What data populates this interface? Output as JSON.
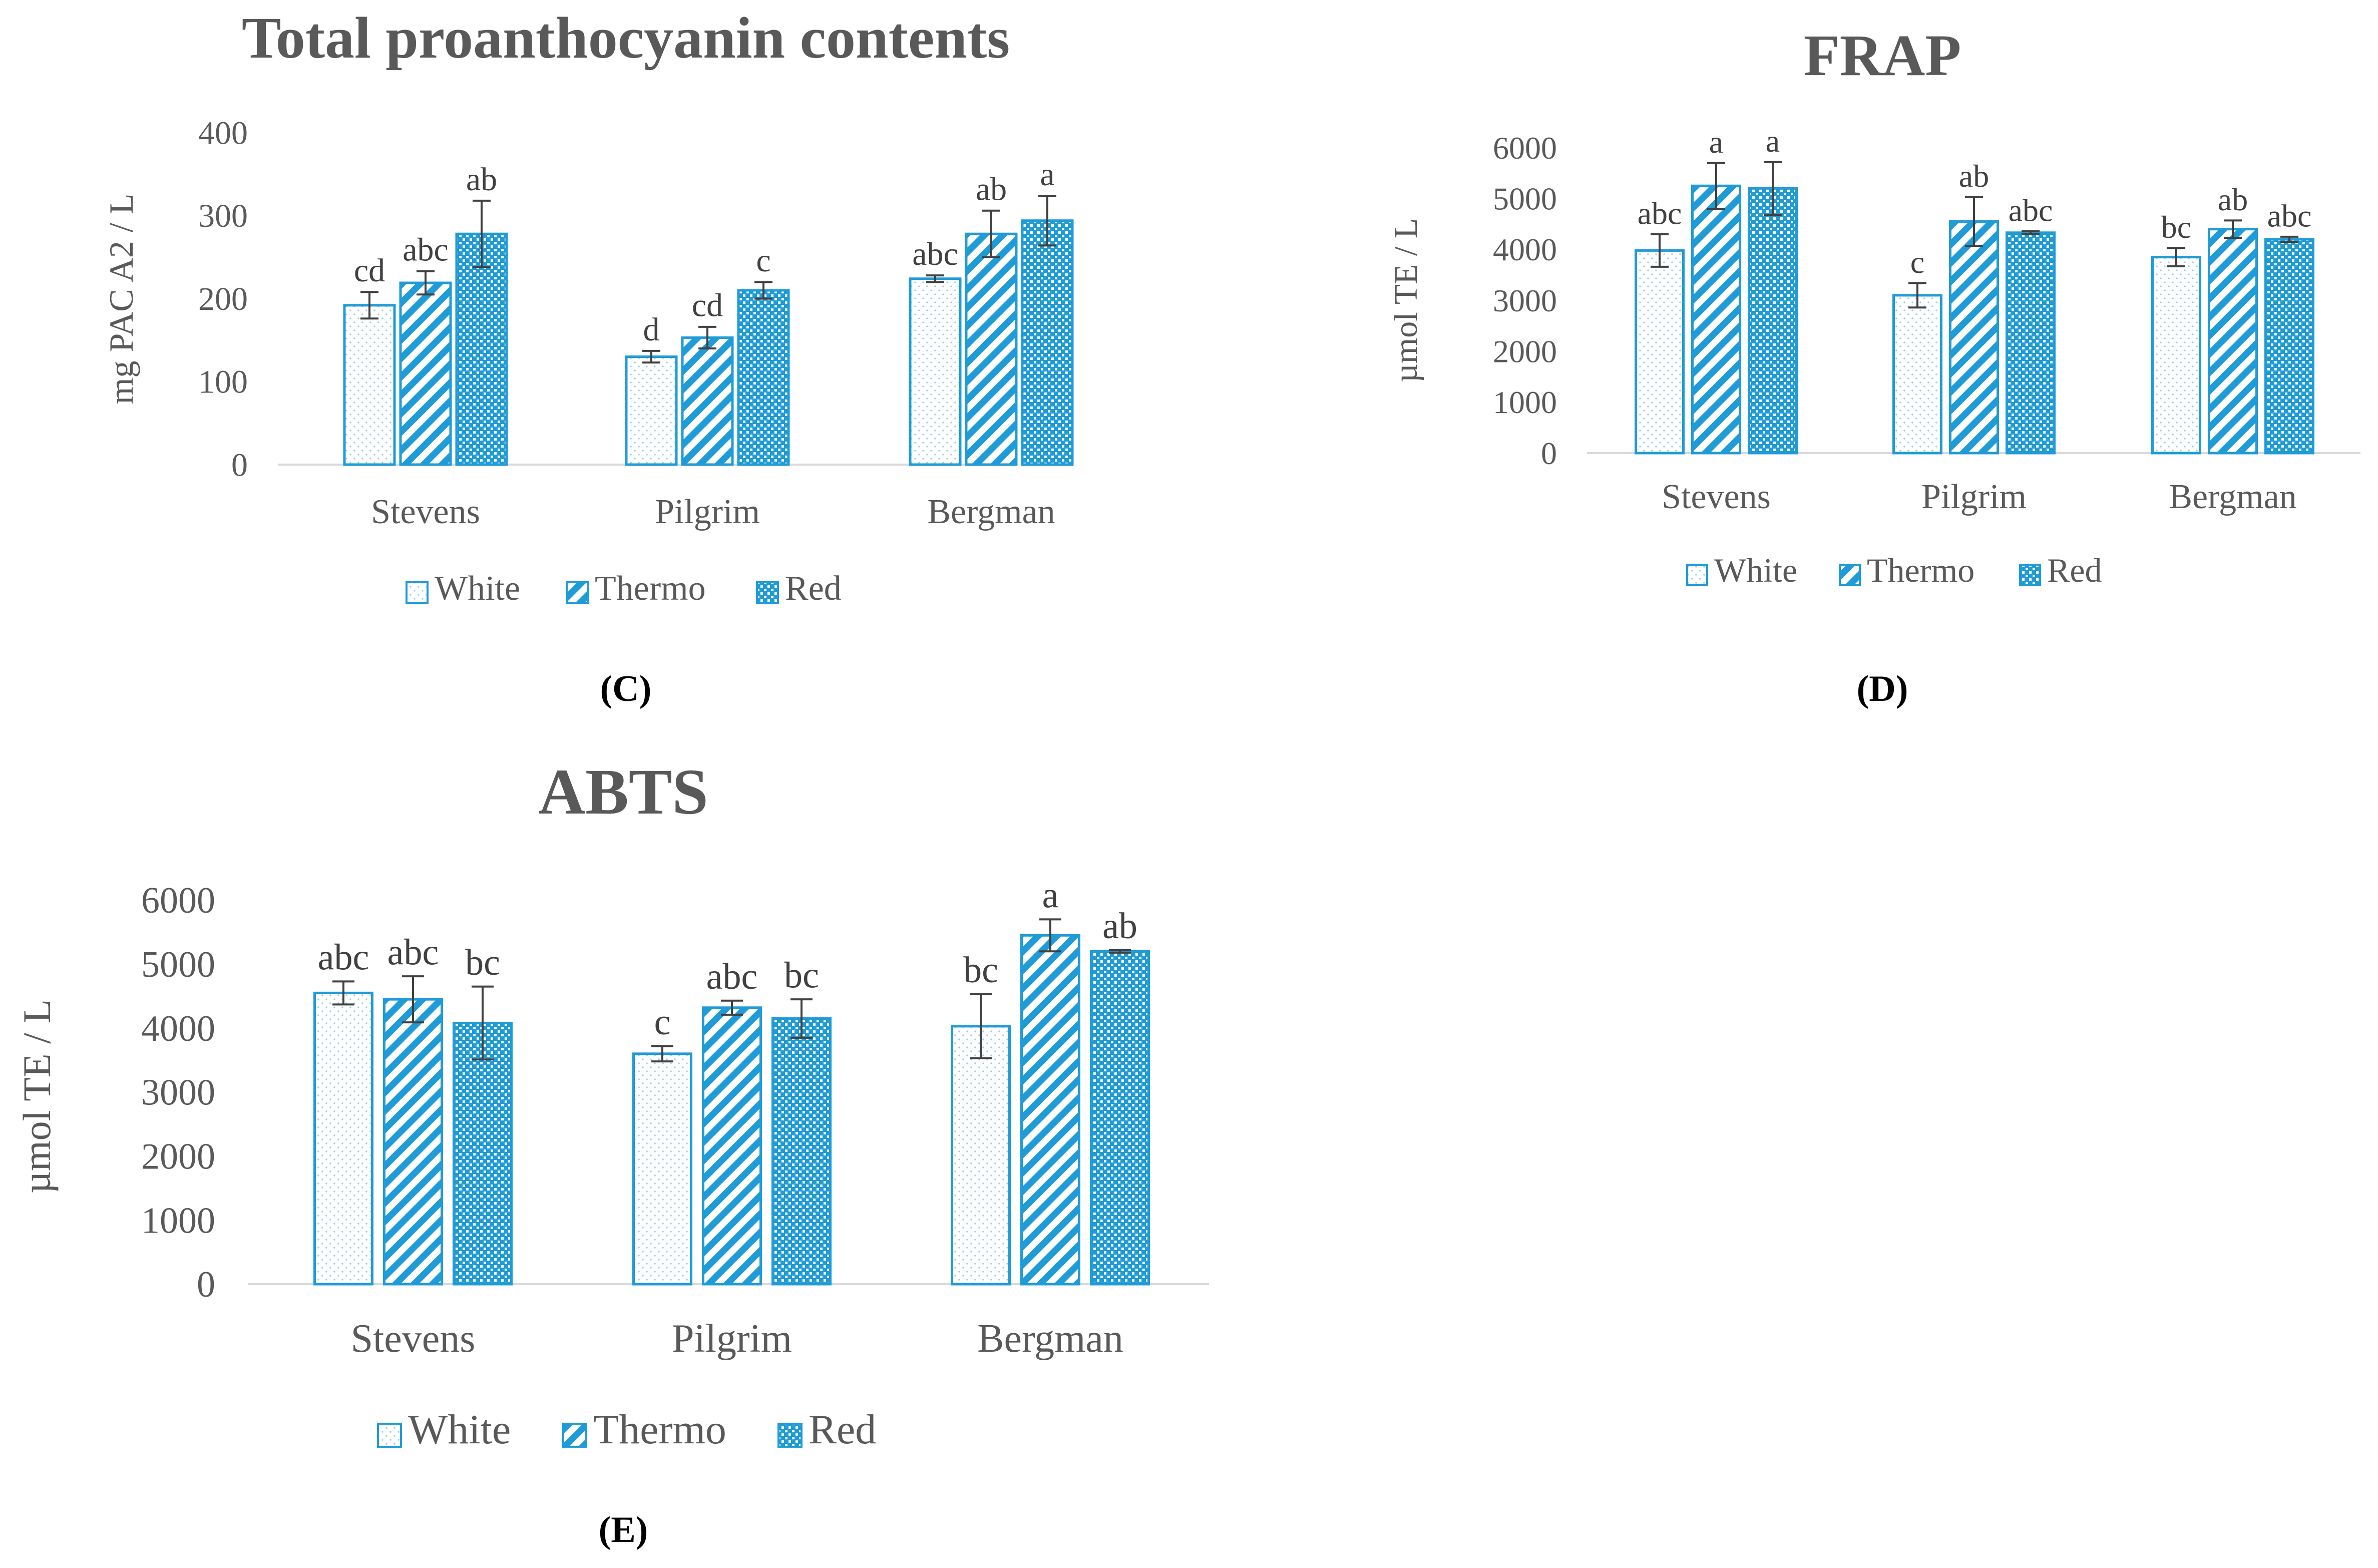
{
  "colors": {
    "accent": "#1F9BD7",
    "text": "#595959",
    "axis": "#D9D9D9",
    "errorbar": "#404040"
  },
  "chart_data": [
    {
      "type": "bar",
      "panel_label": "(C)",
      "title": "Total proanthocyanin contents",
      "ylabel": "mg PAC A2 / L",
      "xlabel": "",
      "ylim": [
        0,
        400
      ],
      "yticks": [
        "0",
        "100",
        "200",
        "300",
        "400"
      ],
      "grid": false,
      "legend_position": "bottom",
      "categories": [
        "Stevens",
        "Pilgrim",
        "Bergman"
      ],
      "series": [
        {
          "name": "White",
          "pattern": "dots",
          "values": [
            192,
            130,
            224
          ],
          "errors": [
            16,
            7,
            4
          ],
          "labels": [
            "cd",
            "d",
            "abc"
          ]
        },
        {
          "name": "Thermo",
          "pattern": "diagonal",
          "values": [
            219,
            153,
            278
          ],
          "errors": [
            14,
            13,
            28
          ],
          "labels": [
            "abc",
            "cd",
            "ab"
          ]
        },
        {
          "name": "Red",
          "pattern": "checker",
          "values": [
            278,
            210,
            294
          ],
          "errors": [
            40,
            10,
            30
          ],
          "labels": [
            "ab",
            "c",
            "a"
          ]
        }
      ]
    },
    {
      "type": "bar",
      "panel_label": "(D)",
      "title": "FRAP",
      "ylabel": "µmol TE / L",
      "xlabel": "",
      "ylim": [
        0,
        6000
      ],
      "yticks": [
        "0",
        "1000",
        "2000",
        "3000",
        "4000",
        "5000",
        "6000"
      ],
      "grid": false,
      "legend_position": "bottom",
      "categories": [
        "Stevens",
        "Pilgrim",
        "Bergman"
      ],
      "series": [
        {
          "name": "White",
          "pattern": "dots",
          "values": [
            3980,
            3100,
            3850
          ],
          "errors": [
            320,
            240,
            180
          ],
          "labels": [
            "abc",
            "c",
            "bc"
          ]
        },
        {
          "name": "Thermo",
          "pattern": "diagonal",
          "values": [
            5250,
            4550,
            4400
          ],
          "errors": [
            450,
            480,
            170
          ],
          "labels": [
            "a",
            "ab",
            "ab"
          ]
        },
        {
          "name": "Red",
          "pattern": "checker",
          "values": [
            5200,
            4330,
            4200
          ],
          "errors": [
            520,
            30,
            50
          ],
          "labels": [
            "a",
            "abc",
            "abc"
          ]
        }
      ]
    },
    {
      "type": "bar",
      "panel_label": "(E)",
      "title": "ABTS",
      "ylabel": "µmol TE / L",
      "xlabel": "",
      "ylim": [
        0,
        6000
      ],
      "yticks": [
        "0",
        "1000",
        "2000",
        "3000",
        "4000",
        "5000",
        "6000"
      ],
      "grid": false,
      "legend_position": "bottom",
      "categories": [
        "Stevens",
        "Pilgrim",
        "Bergman"
      ],
      "series": [
        {
          "name": "White",
          "pattern": "dots",
          "values": [
            4550,
            3600,
            4030
          ],
          "errors": [
            180,
            120,
            500
          ],
          "labels": [
            "abc",
            "c",
            "bc"
          ]
        },
        {
          "name": "Thermo",
          "pattern": "diagonal",
          "values": [
            4450,
            4320,
            5450
          ],
          "errors": [
            360,
            110,
            250
          ],
          "labels": [
            "abc",
            "abc",
            "a"
          ]
        },
        {
          "name": "Red",
          "pattern": "checker",
          "values": [
            4080,
            4150,
            5200
          ],
          "errors": [
            570,
            300,
            20
          ],
          "labels": [
            "bc",
            "bc",
            "ab"
          ]
        }
      ]
    }
  ]
}
